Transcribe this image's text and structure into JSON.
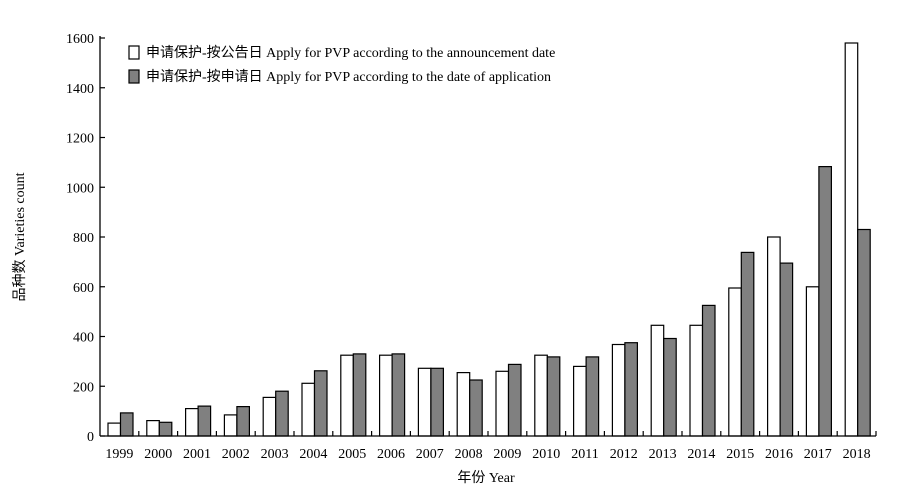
{
  "chart_data": {
    "type": "bar",
    "title": "",
    "xlabel": "年份 Year",
    "ylabel": "品种数 Varieties count",
    "ylim": [
      0,
      1600
    ],
    "yticks": [
      0,
      200,
      400,
      600,
      800,
      1000,
      1200,
      1400,
      1600
    ],
    "grid": false,
    "legend_position": "top-left",
    "categories": [
      "1999",
      "2000",
      "2001",
      "2002",
      "2003",
      "2004",
      "2005",
      "2006",
      "2007",
      "2008",
      "2009",
      "2010",
      "2011",
      "2012",
      "2013",
      "2014",
      "2015",
      "2016",
      "2017",
      "2018"
    ],
    "series": [
      {
        "name": "申请保护-按公告日 Apply for PVP according to the announcement date",
        "color": "#ffffff",
        "values": [
          52,
          62,
          110,
          85,
          155,
          212,
          325,
          325,
          272,
          255,
          260,
          325,
          280,
          368,
          445,
          445,
          595,
          800,
          600,
          1580
        ]
      },
      {
        "name": "申请保护-按申请日 Apply for PVP according to the date of application",
        "color": "#808080",
        "values": [
          93,
          55,
          120,
          118,
          180,
          262,
          330,
          330,
          272,
          225,
          288,
          318,
          318,
          375,
          392,
          525,
          738,
          695,
          1083,
          830
        ]
      }
    ]
  }
}
